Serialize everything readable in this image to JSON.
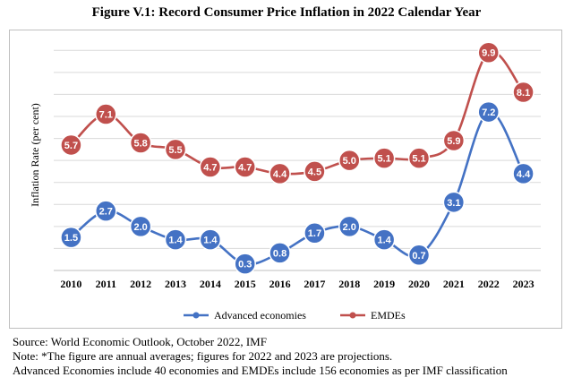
{
  "chart_data": {
    "type": "line",
    "title": "Figure V.1: Record Consumer Price Inflation in 2022 Calendar Year",
    "ylabel": "Inflation Rate (per cent)",
    "xlabel": "",
    "categories": [
      "2010",
      "2011",
      "2012",
      "2013",
      "2014",
      "2015",
      "2016",
      "2017",
      "2018",
      "2019",
      "2020",
      "2021",
      "2022",
      "2023"
    ],
    "ylim": [
      0,
      10.5
    ],
    "grid": true,
    "legend": "bottom",
    "series": [
      {
        "name": "Advanced economies",
        "color": "#4472c4",
        "values": [
          1.5,
          2.7,
          2.0,
          1.4,
          1.4,
          0.3,
          0.8,
          1.7,
          2.0,
          1.4,
          0.7,
          3.1,
          7.2,
          4.4
        ],
        "labels": [
          "1.5",
          "2.7",
          "2.0",
          "1.4",
          "1.4",
          "0.3",
          "0.8",
          "1.7",
          "2.0",
          "1.4",
          "0.7",
          "3.1",
          "7.2",
          "4.4"
        ]
      },
      {
        "name": "EMDEs",
        "color": "#c0504d",
        "values": [
          5.7,
          7.1,
          5.8,
          5.5,
          4.7,
          4.7,
          4.4,
          4.5,
          5.0,
          5.1,
          5.1,
          5.9,
          9.9,
          8.1
        ],
        "labels": [
          "5.7",
          "7.1",
          "5.8",
          "5.5",
          "4.7",
          "4.7",
          "4.4",
          "4.5",
          "5.0",
          "5.1",
          "5.1",
          "5.9",
          "9.9",
          "8.1"
        ]
      }
    ]
  },
  "notes": {
    "source": "Source: World Economic Outlook, October 2022, IMF",
    "note": "Note: *The figure are annual averages; figures for 2022 and 2023 are projections.",
    "coverage": "Advanced Economies include 40 economies and EMDEs include 156 economies as per IMF classification"
  }
}
